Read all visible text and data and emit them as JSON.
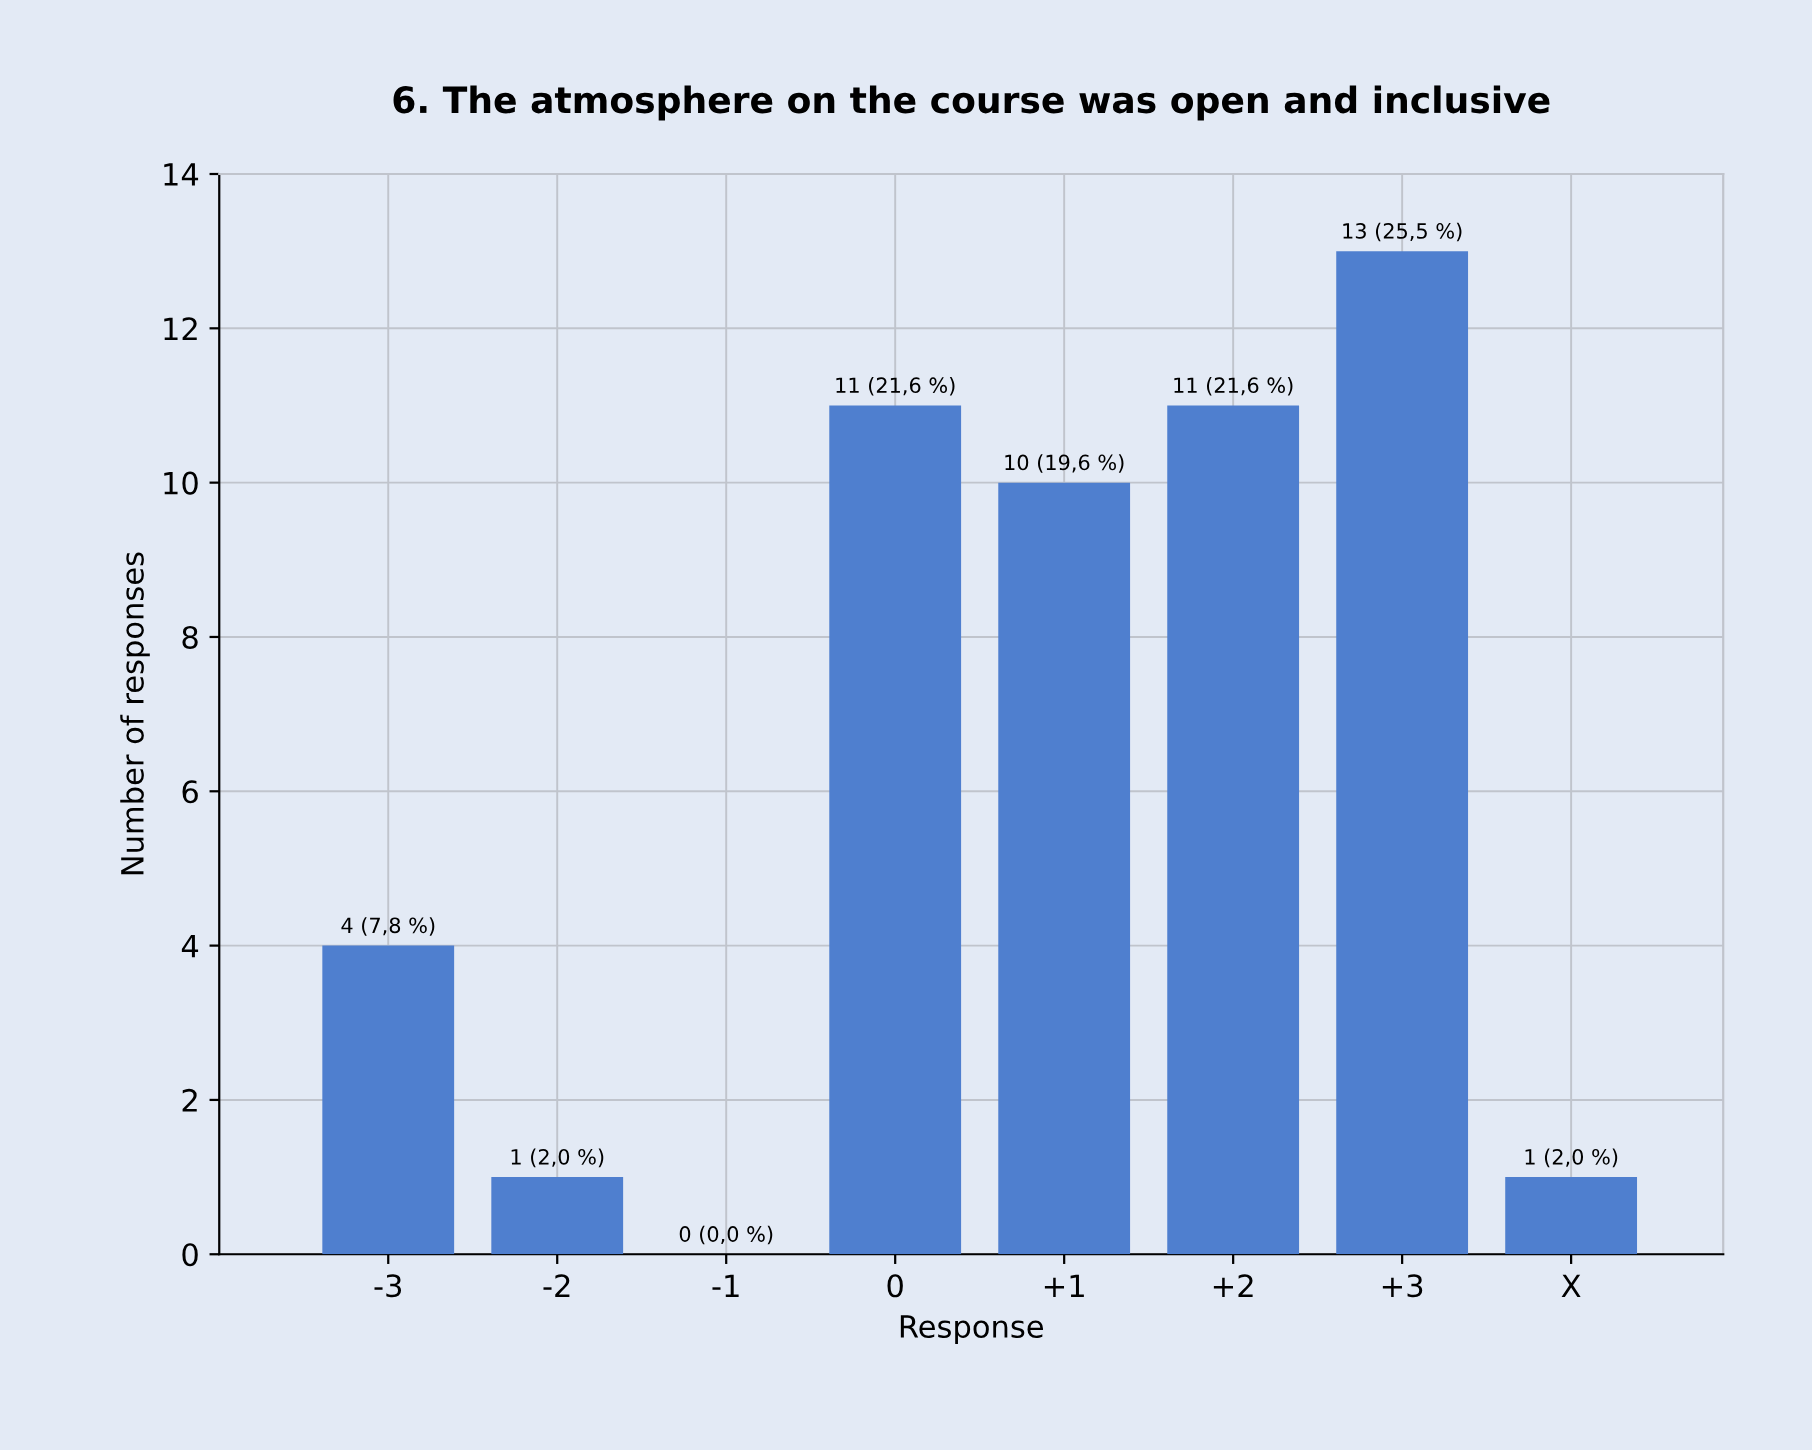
{
  "chart_data": {
    "type": "bar",
    "title": "6. The atmosphere on the course was open and inclusive",
    "xlabel": "Response",
    "ylabel": "Number of responses",
    "categories": [
      "-3",
      "-2",
      "-1",
      "0",
      "+1",
      "+2",
      "+3",
      "X"
    ],
    "values": [
      4,
      1,
      0,
      11,
      10,
      11,
      13,
      1
    ],
    "value_labels": [
      "4 (7,8 %)",
      "1 (2,0 %)",
      "0 (0,0 %)",
      "11 (21,6 %)",
      "10 (19,6 %)",
      "11 (21,6 %)",
      "13 (25,5 %)",
      "1 (2,0 %)"
    ],
    "color": "#4f7fcf",
    "ylim": [
      0,
      14
    ],
    "yticks": [
      0,
      2,
      4,
      6,
      8,
      10,
      12,
      14
    ],
    "grid": true
  }
}
